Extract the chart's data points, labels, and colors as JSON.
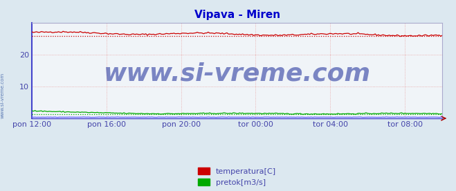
{
  "title": "Vipava - Miren",
  "title_color": "#0000cc",
  "fig_bg_color": "#dce8f0",
  "plot_bg_color": "#f0f4f8",
  "grid_color": "#e8a0a0",
  "grid_style": "dotted",
  "left_spine_color": "#4444cc",
  "bottom_spine_color": "#4444cc",
  "right_spine_color": "#aaaacc",
  "top_spine_color": "#aaaacc",
  "x_labels": [
    "pon 12:00",
    "pon 16:00",
    "pon 20:00",
    "tor 00:00",
    "tor 04:00",
    "tor 08:00"
  ],
  "x_ticks_norm": [
    0.0,
    0.182,
    0.364,
    0.545,
    0.727,
    0.909
  ],
  "y_ticks": [
    10,
    20
  ],
  "y_min": 0,
  "y_max": 30,
  "temp_color": "#cc0000",
  "flow_color": "#00aa00",
  "height_color": "#6666ff",
  "watermark_text": "www.si-vreme.com",
  "watermark_color": "#1a2a99",
  "watermark_alpha": 0.55,
  "watermark_fontsize": 26,
  "legend_labels": [
    "temperatura[C]",
    "pretok[m3/s]"
  ],
  "legend_colors": [
    "#cc0000",
    "#00aa00"
  ],
  "tick_color": "#4444aa",
  "tick_fontsize": 8,
  "sidebar_text": "www.si-vreme.com",
  "sidebar_color": "#4466aa",
  "arrow_color": "#aa0000"
}
